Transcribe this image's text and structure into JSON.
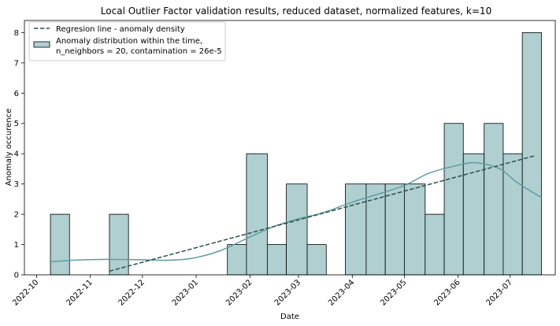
{
  "chart_data": {
    "type": "bar",
    "title": "Local Outlier Factor validation results, reduced dataset, normalized features, k=10",
    "xlabel": "Date",
    "ylabel": "Anomaly occurence",
    "x_ticks": [
      "2022-10",
      "2022-11",
      "2022-12",
      "2023-01",
      "2023-02",
      "2023-03",
      "2023-04",
      "2023-05",
      "2023-06",
      "2023-07"
    ],
    "y_ticks": [
      "0",
      "1",
      "2",
      "3",
      "4",
      "5",
      "6",
      "7",
      "8"
    ],
    "ylim": [
      0,
      8.4
    ],
    "xlim": [
      "2022-09-24",
      "2023-07-27"
    ],
    "grid": false,
    "legend_position": "top-left",
    "bins": [
      {
        "start": "2022-10-09",
        "end": "2022-10-20",
        "count": 2
      },
      {
        "start": "2022-10-20",
        "end": "2022-11-01",
        "count": 0
      },
      {
        "start": "2022-11-01",
        "end": "2022-11-12",
        "count": 0
      },
      {
        "start": "2022-11-12",
        "end": "2022-11-23",
        "count": 2
      },
      {
        "start": "2022-11-23",
        "end": "2022-12-05",
        "count": 0
      },
      {
        "start": "2022-12-05",
        "end": "2022-12-16",
        "count": 0
      },
      {
        "start": "2022-12-16",
        "end": "2022-12-27",
        "count": 0
      },
      {
        "start": "2022-12-27",
        "end": "2023-01-08",
        "count": 0
      },
      {
        "start": "2023-01-08",
        "end": "2023-01-19",
        "count": 0
      },
      {
        "start": "2023-01-19",
        "end": "2023-01-30",
        "count": 1
      },
      {
        "start": "2023-01-30",
        "end": "2023-02-11",
        "count": 4
      },
      {
        "start": "2023-02-11",
        "end": "2023-02-22",
        "count": 1
      },
      {
        "start": "2023-02-22",
        "end": "2023-03-06",
        "count": 3
      },
      {
        "start": "2023-03-06",
        "end": "2023-03-17",
        "count": 1
      },
      {
        "start": "2023-03-17",
        "end": "2023-03-28",
        "count": 0
      },
      {
        "start": "2023-03-28",
        "end": "2023-04-09",
        "count": 3
      },
      {
        "start": "2023-04-09",
        "end": "2023-04-20",
        "count": 3
      },
      {
        "start": "2023-04-20",
        "end": "2023-05-01",
        "count": 3
      },
      {
        "start": "2023-05-01",
        "end": "2023-05-13",
        "count": 3
      },
      {
        "start": "2023-05-13",
        "end": "2023-05-24",
        "count": 2
      },
      {
        "start": "2023-05-24",
        "end": "2023-06-04",
        "count": 5
      },
      {
        "start": "2023-06-04",
        "end": "2023-06-16",
        "count": 4
      },
      {
        "start": "2023-06-16",
        "end": "2023-06-27",
        "count": 5
      },
      {
        "start": "2023-06-27",
        "end": "2023-07-08",
        "count": 4
      },
      {
        "start": "2023-07-08",
        "end": "2023-07-19",
        "count": 8
      }
    ],
    "regression_line": {
      "name": "Regresion line - anomaly density",
      "start": {
        "x": "2022-11-12",
        "y": 0.12
      },
      "end": {
        "x": "2023-07-15",
        "y": 3.93
      }
    },
    "kde_curve": {
      "points": [
        {
          "x": "2022-10-09",
          "y": 0.43
        },
        {
          "x": "2022-10-25",
          "y": 0.49
        },
        {
          "x": "2022-11-10",
          "y": 0.51
        },
        {
          "x": "2022-11-28",
          "y": 0.5
        },
        {
          "x": "2022-12-15",
          "y": 0.48
        },
        {
          "x": "2022-12-30",
          "y": 0.55
        },
        {
          "x": "2023-01-15",
          "y": 0.8
        },
        {
          "x": "2023-02-01",
          "y": 1.25
        },
        {
          "x": "2023-02-15",
          "y": 1.6
        },
        {
          "x": "2023-03-01",
          "y": 1.85
        },
        {
          "x": "2023-03-15",
          "y": 2.05
        },
        {
          "x": "2023-04-01",
          "y": 2.4
        },
        {
          "x": "2023-04-15",
          "y": 2.65
        },
        {
          "x": "2023-05-01",
          "y": 2.95
        },
        {
          "x": "2023-05-15",
          "y": 3.35
        },
        {
          "x": "2023-06-01",
          "y": 3.62
        },
        {
          "x": "2023-06-12",
          "y": 3.7
        },
        {
          "x": "2023-06-25",
          "y": 3.5
        },
        {
          "x": "2023-07-05",
          "y": 3.05
        },
        {
          "x": "2023-07-19",
          "y": 2.55
        }
      ]
    },
    "legend": [
      {
        "type": "dashed-line",
        "label": "Regresion line - anomaly density"
      },
      {
        "type": "patch",
        "label_lines": [
          "Anomaly distribution within the time,",
          "n_neighbors = 20, contamination = 26e-5"
        ]
      }
    ],
    "colors": {
      "bar_fill": "#afcfd1",
      "bar_edge": "#000000",
      "kde": "#5f9ea0",
      "regression": "#2f4f4f"
    }
  }
}
